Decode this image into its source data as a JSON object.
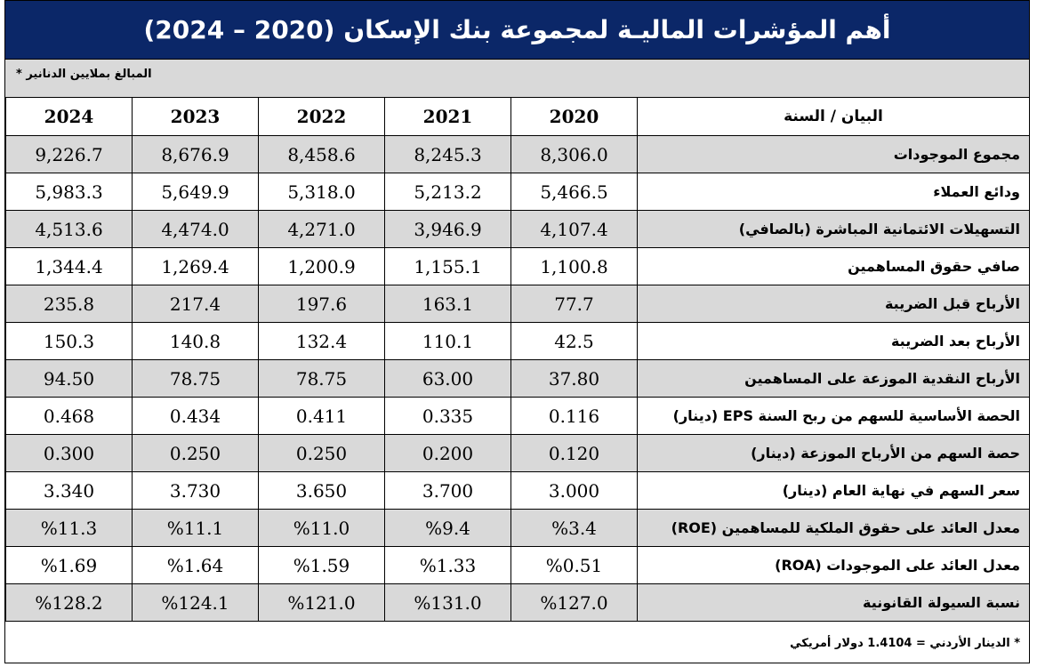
{
  "title": "أهم المؤشرات الماليـة لمجموعة بنك الإسكان (2020 – 2024)",
  "note": "المبالغ بملايين الدنانير *",
  "header": {
    "label": "البيان / السنة",
    "years": [
      "2024",
      "2023",
      "2022",
      "2021",
      "2020"
    ]
  },
  "rows": [
    {
      "label": "مجموع الموجودات",
      "values": [
        "9,226.7",
        "8,676.9",
        "8,458.6",
        "8,245.3",
        "8,306.0"
      ]
    },
    {
      "label": "ودائع العملاء",
      "values": [
        "5,983.3",
        "5,649.9",
        "5,318.0",
        "5,213.2",
        "5,466.5"
      ]
    },
    {
      "label": "التسهيلات الائتمانية المباشرة (بالصافي)",
      "values": [
        "4,513.6",
        "4,474.0",
        "4,271.0",
        "3,946.9",
        "4,107.4"
      ]
    },
    {
      "label": "صافي حقوق المساهمين",
      "values": [
        "1,344.4",
        "1,269.4",
        "1,200.9",
        "1,155.1",
        "1,100.8"
      ]
    },
    {
      "label": "الأرباح قبل الضريبة",
      "values": [
        "235.8",
        "217.4",
        "197.6",
        "163.1",
        "77.7"
      ]
    },
    {
      "label": "الأرباح بعد الضريبة",
      "values": [
        "150.3",
        "140.8",
        "132.4",
        "110.1",
        "42.5"
      ]
    },
    {
      "label": "الأرباح النقدية الموزعة على المساهمين",
      "values": [
        "94.50",
        "78.75",
        "78.75",
        "63.00",
        "37.80"
      ]
    },
    {
      "label": "الحصة الأساسية للسهم من ربح السنة EPS (دينار)",
      "values": [
        "0.468",
        "0.434",
        "0.411",
        "0.335",
        "0.116"
      ]
    },
    {
      "label": "حصة السهم من الأرباح الموزعة (دينار)",
      "values": [
        "0.300",
        "0.250",
        "0.250",
        "0.200",
        "0.120"
      ]
    },
    {
      "label": "سعر السهم في نهاية العام (دينار)",
      "values": [
        "3.340",
        "3.730",
        "3.650",
        "3.700",
        "3.000"
      ]
    },
    {
      "label": "معدل العائد على حقوق الملكية للمساهمين (ROE)",
      "values": [
        "%11.3",
        "%11.1",
        "%11.0",
        "%9.4",
        "%3.4"
      ]
    },
    {
      "label": "معدل العائد على الموجودات (ROA)",
      "values": [
        "%1.69",
        "%1.64",
        "%1.59",
        "%1.33",
        "%0.51"
      ]
    },
    {
      "label": "نسبة السيولة القانونية",
      "values": [
        "%128.2",
        "%124.1",
        "%121.0",
        "%131.0",
        "%127.0"
      ]
    }
  ],
  "footer": "* الدينار الأردني = 1.4104 دولار أمريكي",
  "colors": {
    "title_bg": "#0b2768",
    "shade": "#d9d9d9"
  }
}
